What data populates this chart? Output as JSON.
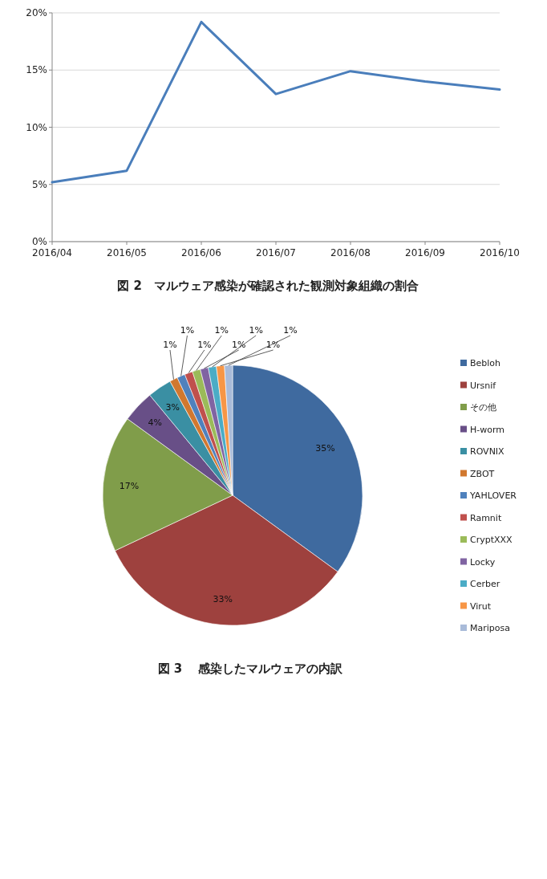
{
  "chart_data": [
    {
      "type": "line",
      "title": "図 2　マルウェア感染が確認された観測対象組織の割合",
      "categories": [
        "2016/04",
        "2016/05",
        "2016/06",
        "2016/07",
        "2016/08",
        "2016/09",
        "2016/10"
      ],
      "values": [
        5.2,
        6.2,
        19.2,
        12.9,
        14.9,
        14.0,
        13.3
      ],
      "color": "#4a7ebb",
      "ylim": [
        0,
        20
      ],
      "yticks": [
        {
          "value": 0,
          "label": "0%"
        },
        {
          "value": 5,
          "label": "5%"
        },
        {
          "value": 10,
          "label": "10%"
        },
        {
          "value": 15,
          "label": "15%"
        },
        {
          "value": 20,
          "label": "20%"
        }
      ],
      "grid": "y"
    },
    {
      "type": "pie",
      "title": "図 3　 感染したマルウェアの内訳",
      "categories": [
        "Bebloh",
        "Ursnif",
        "その他",
        "H-worm",
        "ROVNIX",
        "ZBOT",
        "YAHLOVER",
        "Ramnit",
        "CryptXXX",
        "Locky",
        "Cerber",
        "Virut",
        "Mariposa"
      ],
      "values": [
        35,
        33,
        17,
        4,
        3,
        1,
        1,
        1,
        1,
        1,
        1,
        1,
        1
      ],
      "colors": [
        "#3f6a9f",
        "#9e413e",
        "#809d4a",
        "#684f87",
        "#3a8fa3",
        "#d1782f",
        "#4f81bd",
        "#c0504d",
        "#9bbb59",
        "#8064a2",
        "#4bacc6",
        "#f79646",
        "#a9bbd9"
      ],
      "value_labels": [
        "35%",
        "33%",
        "17%",
        "4%",
        "3%",
        "1%",
        "1%",
        "1%",
        "1%",
        "1%",
        "1%",
        "1%",
        "1%"
      ],
      "legend": "right"
    }
  ]
}
